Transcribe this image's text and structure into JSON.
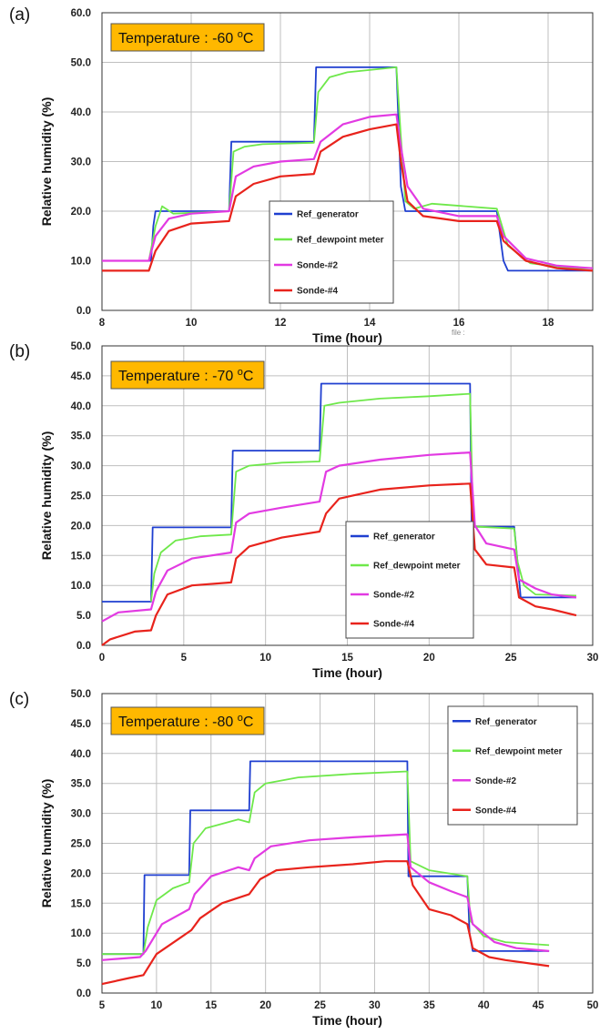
{
  "colors": {
    "Ref_generator": "#1f3fd0",
    "Ref_dewpoint meter": "#6ee84a",
    "Sonde-#2": "#e23ae2",
    "Sonde-#4": "#e8231c",
    "badge_fill": "#ffb800",
    "grid": "#bfbfbf"
  },
  "stray_text": "file :",
  "chart_data": [
    {
      "type": "line",
      "panel_label": "(a)",
      "annotation": "Temperature : -60",
      "annotation_unit": "oC",
      "xlabel": "Time (hour)",
      "ylabel": "Relative humidity (%)",
      "xlim": [
        8,
        19
      ],
      "ylim": [
        0,
        60
      ],
      "xticks": [
        8,
        10,
        12,
        14,
        16,
        18
      ],
      "yticks": [
        "0.0",
        "10.0",
        "20.0",
        "30.0",
        "40.0",
        "50.0",
        "60.0"
      ],
      "grid": true,
      "legend_position": "center",
      "series": [
        {
          "name": "Ref_generator",
          "x": [
            8.0,
            9.1,
            9.15,
            9.2,
            10.85,
            10.9,
            12.75,
            12.8,
            14.6,
            14.7,
            14.8,
            16.85,
            17.0,
            17.1,
            19.0
          ],
          "y": [
            10.0,
            10.0,
            17.0,
            20.0,
            20.0,
            34.0,
            34.0,
            49.0,
            49.0,
            25.0,
            20.0,
            20.0,
            10.0,
            8.0,
            8.0
          ]
        },
        {
          "name": "Ref_dewpoint meter",
          "x": [
            8.0,
            9.05,
            9.2,
            9.35,
            9.6,
            10.85,
            10.95,
            11.2,
            11.6,
            12.75,
            12.85,
            13.1,
            13.5,
            14.6,
            14.7,
            14.8,
            15.0,
            15.4,
            16.85,
            17.1,
            17.6,
            18.5,
            19.0
          ],
          "y": [
            10.0,
            10.0,
            17.0,
            21.0,
            19.5,
            20.0,
            32.0,
            33.0,
            33.5,
            33.8,
            44.0,
            47.0,
            48.0,
            49.0,
            35.0,
            22.0,
            20.5,
            21.5,
            20.5,
            13.0,
            9.5,
            8.5,
            8.5
          ]
        },
        {
          "name": "Sonde-#2",
          "x": [
            8.0,
            9.05,
            9.2,
            9.5,
            10.0,
            10.85,
            11.0,
            11.4,
            12.0,
            12.75,
            12.9,
            13.4,
            14.0,
            14.6,
            14.7,
            14.85,
            15.2,
            16.0,
            16.85,
            17.0,
            17.5,
            18.2,
            19.0
          ],
          "y": [
            10.0,
            10.0,
            15.0,
            18.5,
            19.5,
            20.0,
            27.0,
            29.0,
            30.0,
            30.5,
            34.0,
            37.5,
            39.0,
            39.5,
            33.0,
            25.0,
            20.5,
            19.0,
            19.0,
            15.0,
            10.5,
            9.0,
            8.5
          ]
        },
        {
          "name": "Sonde-#4",
          "x": [
            8.0,
            9.05,
            9.2,
            9.5,
            10.0,
            10.85,
            11.0,
            11.4,
            12.0,
            12.75,
            12.9,
            13.4,
            14.0,
            14.6,
            14.7,
            14.85,
            15.2,
            16.0,
            16.85,
            17.0,
            17.5,
            18.2,
            19.0
          ],
          "y": [
            8.0,
            8.0,
            12.0,
            16.0,
            17.5,
            18.0,
            23.0,
            25.5,
            27.0,
            27.5,
            32.0,
            35.0,
            36.5,
            37.5,
            30.0,
            22.0,
            19.0,
            18.0,
            18.0,
            14.0,
            10.0,
            8.5,
            8.0
          ]
        }
      ]
    },
    {
      "type": "line",
      "panel_label": "(b)",
      "annotation": "Temperature : -70",
      "annotation_unit": "oC",
      "xlabel": "Time (hour)",
      "ylabel": "Relative humidity (%)",
      "xlim": [
        0,
        30
      ],
      "ylim": [
        0,
        50
      ],
      "xticks": [
        0,
        5,
        10,
        15,
        20,
        25,
        30
      ],
      "yticks": [
        "0.0",
        "5.0",
        "10.0",
        "15.0",
        "20.0",
        "25.0",
        "30.0",
        "35.0",
        "40.0",
        "45.0",
        "50.0"
      ],
      "grid": true,
      "legend_position": "bottom-right",
      "series": [
        {
          "name": "Ref_generator",
          "x": [
            0.0,
            3.0,
            3.1,
            7.9,
            8.0,
            13.3,
            13.4,
            22.5,
            22.6,
            25.2,
            25.4,
            25.6,
            29.0
          ],
          "y": [
            7.3,
            7.3,
            19.7,
            19.7,
            32.5,
            32.5,
            43.7,
            43.7,
            19.8,
            19.8,
            14.0,
            8.0,
            8.0
          ]
        },
        {
          "name": "Ref_dewpoint meter",
          "x": [
            3.0,
            3.2,
            3.6,
            4.5,
            6.0,
            7.9,
            8.2,
            9.0,
            11.0,
            13.3,
            13.6,
            14.5,
            17.0,
            20.0,
            22.5,
            22.7,
            23.0,
            25.2,
            25.4,
            25.8,
            26.5,
            29.0
          ],
          "y": [
            7.3,
            12.0,
            15.5,
            17.5,
            18.2,
            18.5,
            29.0,
            30.0,
            30.5,
            30.7,
            40.0,
            40.5,
            41.2,
            41.6,
            42.0,
            20.0,
            19.8,
            19.5,
            14.0,
            10.0,
            8.5,
            8.3
          ]
        },
        {
          "name": "Sonde-#2",
          "x": [
            0.0,
            1.0,
            3.0,
            3.3,
            4.0,
            5.5,
            7.9,
            8.2,
            9.0,
            11.0,
            13.3,
            13.7,
            14.5,
            17.0,
            20.0,
            22.5,
            22.8,
            23.5,
            25.2,
            25.5,
            26.5,
            27.5,
            29.0
          ],
          "y": [
            4.0,
            5.5,
            6.0,
            9.0,
            12.5,
            14.5,
            15.5,
            20.5,
            22.0,
            23.0,
            24.0,
            29.0,
            30.0,
            31.0,
            31.8,
            32.2,
            20.0,
            17.0,
            16.0,
            11.0,
            9.5,
            8.5,
            8.0
          ]
        },
        {
          "name": "Sonde-#4",
          "x": [
            0.0,
            0.5,
            2.0,
            3.0,
            3.3,
            4.0,
            5.5,
            7.9,
            8.2,
            9.0,
            11.0,
            13.3,
            13.7,
            14.5,
            17.0,
            20.0,
            22.5,
            22.8,
            23.5,
            25.2,
            25.5,
            26.5,
            27.5,
            29.0
          ],
          "y": [
            0.0,
            1.0,
            2.3,
            2.5,
            5.0,
            8.5,
            10.0,
            10.5,
            14.5,
            16.5,
            18.0,
            19.0,
            22.0,
            24.5,
            26.0,
            26.7,
            27.0,
            16.0,
            13.5,
            13.0,
            8.0,
            6.5,
            6.0,
            5.0
          ]
        }
      ]
    },
    {
      "type": "line",
      "panel_label": "(c)",
      "annotation": "Temperature : -80",
      "annotation_unit": "oC",
      "xlabel": "Time (hour)",
      "ylabel": "Relative humidity (%)",
      "xlim": [
        5,
        50
      ],
      "ylim": [
        0,
        50
      ],
      "xticks": [
        5,
        10,
        15,
        20,
        25,
        30,
        35,
        40,
        45,
        50
      ],
      "yticks": [
        "0.0",
        "5.0",
        "10.0",
        "15.0",
        "20.0",
        "25.0",
        "30.0",
        "35.0",
        "40.0",
        "45.0",
        "50.0"
      ],
      "grid": true,
      "legend_position": "top-right",
      "series": [
        {
          "name": "Ref_generator",
          "x": [
            5.0,
            8.8,
            8.9,
            13.0,
            13.1,
            18.5,
            18.6,
            33.0,
            33.1,
            38.5,
            38.7,
            39.0,
            46.0
          ],
          "y": [
            6.5,
            6.5,
            19.7,
            19.7,
            30.5,
            30.5,
            38.7,
            38.7,
            19.5,
            19.5,
            10.0,
            7.0,
            7.0
          ]
        },
        {
          "name": "Ref_dewpoint meter",
          "x": [
            5.0,
            8.8,
            9.2,
            10.0,
            11.5,
            13.0,
            13.4,
            14.5,
            17.5,
            18.5,
            19.0,
            20.0,
            23.0,
            28.0,
            33.0,
            33.3,
            35.0,
            38.5,
            38.8,
            40.0,
            42.0,
            46.0
          ],
          "y": [
            6.5,
            6.5,
            11.0,
            15.5,
            17.5,
            18.5,
            25.0,
            27.5,
            29.0,
            28.5,
            33.5,
            35.0,
            36.0,
            36.6,
            37.0,
            22.0,
            20.5,
            19.5,
            12.0,
            9.5,
            8.5,
            8.0
          ]
        },
        {
          "name": "Sonde-#2",
          "x": [
            5.0,
            8.5,
            9.0,
            10.5,
            13.0,
            13.5,
            15.0,
            17.5,
            18.5,
            19.0,
            20.5,
            24.0,
            28.0,
            33.0,
            33.3,
            35.0,
            37.0,
            38.5,
            39.0,
            41.0,
            43.0,
            46.0
          ],
          "y": [
            5.5,
            6.0,
            7.0,
            11.5,
            14.0,
            16.5,
            19.5,
            21.0,
            20.5,
            22.5,
            24.5,
            25.5,
            26.0,
            26.5,
            21.0,
            18.5,
            17.0,
            16.0,
            11.5,
            8.5,
            7.5,
            7.0
          ]
        },
        {
          "name": "Sonde-#4",
          "x": [
            5.0,
            7.5,
            8.8,
            10.0,
            12.0,
            13.2,
            14.0,
            16.0,
            18.5,
            19.5,
            21.0,
            24.0,
            28.0,
            31.0,
            33.0,
            33.5,
            35.0,
            37.0,
            38.5,
            39.0,
            40.5,
            42.0,
            46.0
          ],
          "y": [
            1.5,
            2.5,
            3.0,
            6.5,
            9.0,
            10.5,
            12.5,
            15.0,
            16.5,
            19.0,
            20.5,
            21.0,
            21.5,
            22.0,
            22.0,
            18.0,
            14.0,
            13.0,
            11.5,
            7.5,
            6.0,
            5.5,
            4.5
          ]
        }
      ]
    }
  ]
}
